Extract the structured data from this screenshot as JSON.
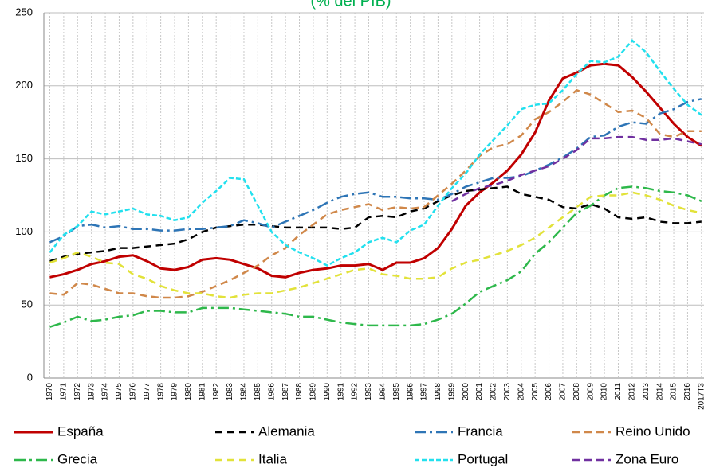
{
  "chart_data": {
    "type": "line",
    "title": "(% del PIB)",
    "title_color": "#00b050",
    "categories": [
      "1970",
      "1971",
      "1972",
      "1973",
      "1974",
      "1975",
      "1976",
      "1977",
      "1978",
      "1979",
      "1980",
      "1981",
      "1982",
      "1983",
      "1984",
      "1985",
      "1986",
      "1987",
      "1988",
      "1989",
      "1990",
      "1991",
      "1992",
      "1993",
      "1994",
      "1995",
      "1996",
      "1997",
      "1998",
      "1999",
      "2000",
      "2001",
      "2002",
      "2003",
      "2004",
      "2005",
      "2006",
      "2007",
      "2008",
      "2009",
      "2010",
      "2011",
      "2012",
      "2013",
      "2014",
      "2015",
      "2016",
      "2017T3"
    ],
    "ylim": [
      0,
      250
    ],
    "yticks": [
      0,
      50,
      100,
      150,
      200,
      250
    ],
    "grid": true,
    "series": [
      {
        "name": "España",
        "color": "#c00000",
        "values": [
          69,
          71,
          74,
          78,
          80,
          83,
          84,
          80,
          75,
          74,
          76,
          81,
          82,
          81,
          78,
          75,
          70,
          69,
          72,
          74,
          75,
          77,
          77,
          78,
          74,
          79,
          79,
          82,
          89,
          102,
          118,
          127,
          134,
          142,
          153,
          168,
          190,
          205,
          209,
          214,
          215,
          214,
          206,
          196,
          185,
          174,
          165,
          159
        ]
      },
      {
        "name": "Alemania",
        "color": "#000000",
        "values": [
          80,
          83,
          85,
          86,
          87,
          89,
          89,
          90,
          91,
          92,
          95,
          100,
          103,
          104,
          105,
          105,
          104,
          103,
          103,
          103,
          103,
          102,
          103,
          110,
          111,
          110,
          114,
          116,
          121,
          125,
          128,
          129,
          130,
          131,
          126,
          124,
          122,
          117,
          116,
          119,
          116,
          110,
          109,
          110,
          107,
          106,
          106,
          107
        ]
      },
      {
        "name": "Francia",
        "color": "#2e75b6",
        "values": [
          93,
          97,
          104,
          105,
          103,
          104,
          102,
          102,
          101,
          101,
          102,
          102,
          103,
          104,
          108,
          106,
          103,
          107,
          111,
          115,
          120,
          124,
          126,
          127,
          124,
          124,
          123,
          123,
          122,
          126,
          131,
          134,
          137,
          137,
          138,
          142,
          146,
          151,
          157,
          165,
          166,
          172,
          175,
          174,
          181,
          184,
          189,
          191
        ]
      },
      {
        "name": "Reino Unido",
        "color": "#d0884a",
        "values": [
          58,
          57,
          65,
          64,
          61,
          58,
          58,
          56,
          55,
          55,
          56,
          59,
          63,
          67,
          72,
          77,
          84,
          89,
          98,
          105,
          112,
          115,
          117,
          119,
          115,
          117,
          116,
          117,
          125,
          133,
          142,
          152,
          158,
          160,
          166,
          177,
          182,
          189,
          197,
          194,
          188,
          182,
          183,
          178,
          167,
          165,
          169,
          169
        ]
      },
      {
        "name": "Grecia",
        "color": "#2eb84b",
        "values": [
          35,
          38,
          42,
          39,
          40,
          42,
          43,
          46,
          46,
          45,
          45,
          48,
          48,
          48,
          47,
          46,
          45,
          44,
          42,
          42,
          40,
          38,
          37,
          36,
          36,
          36,
          36,
          37,
          40,
          44,
          51,
          59,
          63,
          67,
          73,
          85,
          93,
          103,
          113,
          118,
          125,
          130,
          131,
          130,
          128,
          127,
          125,
          121
        ]
      },
      {
        "name": "Italia",
        "color": "#e2e23a",
        "values": [
          79,
          82,
          86,
          83,
          79,
          78,
          71,
          68,
          63,
          60,
          58,
          58,
          56,
          55,
          57,
          58,
          58,
          60,
          62,
          65,
          68,
          71,
          74,
          75,
          71,
          70,
          68,
          68,
          69,
          75,
          79,
          81,
          84,
          87,
          91,
          96,
          103,
          110,
          117,
          124,
          125,
          125,
          127,
          125,
          122,
          118,
          115,
          113
        ]
      },
      {
        "name": "Portugal",
        "color": "#22e0ee",
        "values": [
          86,
          98,
          104,
          114,
          112,
          114,
          116,
          112,
          111,
          108,
          110,
          120,
          128,
          137,
          136,
          118,
          100,
          91,
          86,
          82,
          77,
          82,
          86,
          93,
          96,
          93,
          101,
          105,
          118,
          130,
          140,
          153,
          163,
          173,
          184,
          187,
          188,
          197,
          208,
          217,
          216,
          220,
          231,
          223,
          210,
          198,
          187,
          180
        ]
      },
      {
        "name": "Zona Euro",
        "color": "#7030a0",
        "values": [
          null,
          null,
          null,
          null,
          null,
          null,
          null,
          null,
          null,
          null,
          null,
          null,
          null,
          null,
          null,
          null,
          null,
          null,
          null,
          null,
          null,
          null,
          null,
          null,
          null,
          null,
          null,
          null,
          null,
          121,
          126,
          130,
          132,
          135,
          139,
          142,
          145,
          150,
          156,
          164,
          164,
          165,
          165,
          163,
          163,
          164,
          162,
          160
        ]
      }
    ]
  }
}
